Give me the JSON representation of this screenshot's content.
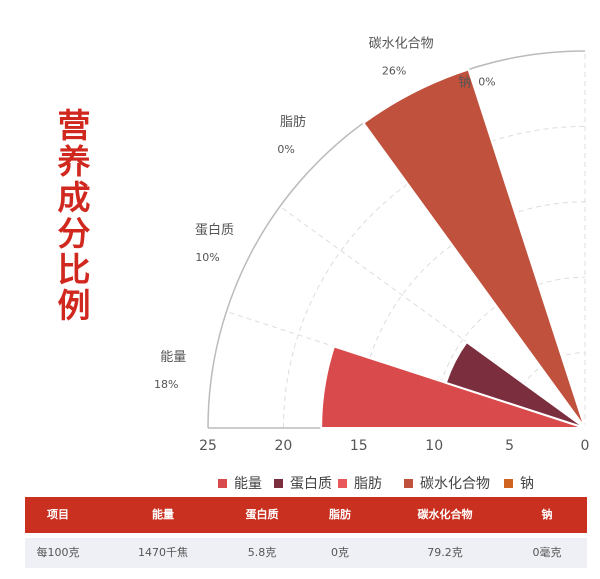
{
  "title": "营养成分比例",
  "chart_data": {
    "type": "polar-bar",
    "categories": [
      "能量",
      "蛋白质",
      "脂肪",
      "碳水化合物",
      "钠"
    ],
    "values": [
      17.5,
      9.7,
      0,
      26.4,
      0
    ],
    "percent_labels": [
      "18%",
      "10%",
      "0%",
      "26%",
      "0%"
    ],
    "radial_axis": {
      "range": [
        0,
        25
      ],
      "ticks": [
        "25",
        "20",
        "15",
        "10",
        "5",
        "0"
      ]
    },
    "angular_range_degrees": 90,
    "grid": true,
    "legend_position": "bottom",
    "colors": [
      "#d94a4c",
      "#7b2f3e",
      "#e8585a",
      "#c0513d",
      "#d0631f"
    ]
  },
  "legend": [
    "能量",
    "蛋白质",
    "脂肪",
    "碳水化合物",
    "钠"
  ],
  "table": {
    "headers": [
      "项目",
      "能量",
      "蛋白质",
      "脂肪",
      "碳水化合物",
      "钠"
    ],
    "rows": [
      [
        "每100克",
        "1470千焦",
        "5.8克",
        "0克",
        "79.2克",
        "0毫克"
      ]
    ]
  }
}
